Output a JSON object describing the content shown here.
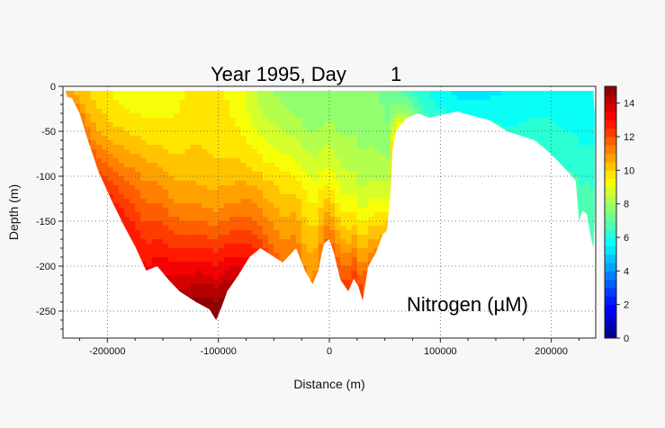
{
  "chart_data": {
    "type": "heatmap",
    "title": "Year 1995, Day",
    "title_day": "1",
    "annotation": "Nitrogen (µM)",
    "xlabel": "Distance (m)",
    "ylabel": "Depth (m)",
    "xlim": [
      -240000,
      240000
    ],
    "ylim": [
      -280,
      0
    ],
    "x_ticks": [
      -200000,
      -100000,
      0,
      100000,
      200000
    ],
    "x_tick_labels": [
      "-200000",
      "-100000",
      "0",
      "100000",
      "200000"
    ],
    "y_ticks": [
      0,
      -50,
      -100,
      -150,
      -200,
      -250
    ],
    "y_tick_labels": [
      "0",
      "-50",
      "-100",
      "-150",
      "-200",
      "-250"
    ],
    "grid": true,
    "colorbar": {
      "min": 0,
      "max": 15,
      "ticks": [
        0,
        2,
        4,
        6,
        8,
        10,
        12,
        14
      ],
      "tick_labels": [
        "0",
        "2",
        "4",
        "6",
        "8",
        "10",
        "12",
        "14"
      ],
      "colormap": "jet"
    },
    "bathymetry": [
      [
        -238000,
        -5
      ],
      [
        -236000,
        -12
      ],
      [
        -232000,
        -13
      ],
      [
        -225000,
        -30
      ],
      [
        -218000,
        -58
      ],
      [
        -208000,
        -95
      ],
      [
        -195000,
        -130
      ],
      [
        -185000,
        -155
      ],
      [
        -175000,
        -178
      ],
      [
        -165000,
        -205
      ],
      [
        -155000,
        -200
      ],
      [
        -145000,
        -215
      ],
      [
        -135000,
        -228
      ],
      [
        -120000,
        -240
      ],
      [
        -108000,
        -248
      ],
      [
        -102000,
        -260
      ],
      [
        -97000,
        -245
      ],
      [
        -92000,
        -228
      ],
      [
        -82000,
        -210
      ],
      [
        -72000,
        -190
      ],
      [
        -62000,
        -180
      ],
      [
        -52000,
        -188
      ],
      [
        -42000,
        -196
      ],
      [
        -30000,
        -180
      ],
      [
        -22000,
        -205
      ],
      [
        -15000,
        -220
      ],
      [
        -10000,
        -205
      ],
      [
        -5000,
        -175
      ],
      [
        0,
        -170
      ],
      [
        4000,
        -185
      ],
      [
        10000,
        -215
      ],
      [
        17000,
        -228
      ],
      [
        22000,
        -214
      ],
      [
        26000,
        -222
      ],
      [
        30000,
        -238
      ],
      [
        35000,
        -200
      ],
      [
        42000,
        -185
      ],
      [
        48000,
        -165
      ],
      [
        52000,
        -160
      ],
      [
        55000,
        -120
      ],
      [
        57000,
        -70
      ],
      [
        60000,
        -50
      ],
      [
        65000,
        -42
      ],
      [
        70000,
        -35
      ],
      [
        80000,
        -30
      ],
      [
        90000,
        -35
      ],
      [
        100000,
        -32
      ],
      [
        115000,
        -28
      ],
      [
        130000,
        -33
      ],
      [
        145000,
        -38
      ],
      [
        160000,
        -50
      ],
      [
        175000,
        -56
      ],
      [
        185000,
        -60
      ],
      [
        195000,
        -70
      ],
      [
        205000,
        -82
      ],
      [
        215000,
        -95
      ],
      [
        222000,
        -105
      ],
      [
        225000,
        -150
      ],
      [
        228000,
        -138
      ],
      [
        232000,
        -142
      ],
      [
        236000,
        -170
      ],
      [
        238000,
        -180
      ],
      [
        239000,
        -150
      ],
      [
        239000,
        -30
      ],
      [
        238000,
        -5
      ]
    ],
    "surface_profile": [
      [
        -240000,
        10.2
      ],
      [
        -220000,
        10.0
      ],
      [
        -200000,
        9.8
      ],
      [
        -180000,
        9.6
      ],
      [
        -160000,
        9.4
      ],
      [
        -140000,
        9.2
      ],
      [
        -120000,
        9.4
      ],
      [
        -100000,
        9.3
      ],
      [
        -80000,
        9.0
      ],
      [
        -60000,
        8.4
      ],
      [
        -40000,
        8.2
      ],
      [
        -20000,
        7.8
      ],
      [
        0,
        7.6
      ],
      [
        20000,
        7.4
      ],
      [
        40000,
        7.3
      ],
      [
        60000,
        6.8
      ],
      [
        80000,
        6.4
      ],
      [
        100000,
        5.9
      ],
      [
        120000,
        5.6
      ],
      [
        140000,
        5.4
      ],
      [
        160000,
        5.3
      ],
      [
        180000,
        5.4
      ],
      [
        200000,
        5.6
      ],
      [
        220000,
        5.7
      ],
      [
        240000,
        5.8
      ]
    ],
    "bottom_profile": [
      [
        -240000,
        11.0
      ],
      [
        -220000,
        11.4
      ],
      [
        -200000,
        12.2
      ],
      [
        -180000,
        12.8
      ],
      [
        -160000,
        13.3
      ],
      [
        -140000,
        13.8
      ],
      [
        -120000,
        14.4
      ],
      [
        -100000,
        14.8
      ],
      [
        -80000,
        13.6
      ],
      [
        -60000,
        12.1
      ],
      [
        -40000,
        11.4
      ],
      [
        -20000,
        11.1
      ],
      [
        0,
        11.6
      ],
      [
        20000,
        12.4
      ],
      [
        40000,
        11.3
      ],
      [
        60000,
        9.6
      ],
      [
        80000,
        7.0
      ],
      [
        100000,
        6.4
      ],
      [
        120000,
        6.2
      ],
      [
        140000,
        6.0
      ],
      [
        160000,
        6.0
      ],
      [
        180000,
        6.2
      ],
      [
        200000,
        6.4
      ],
      [
        220000,
        6.6
      ],
      [
        240000,
        6.7
      ]
    ]
  }
}
